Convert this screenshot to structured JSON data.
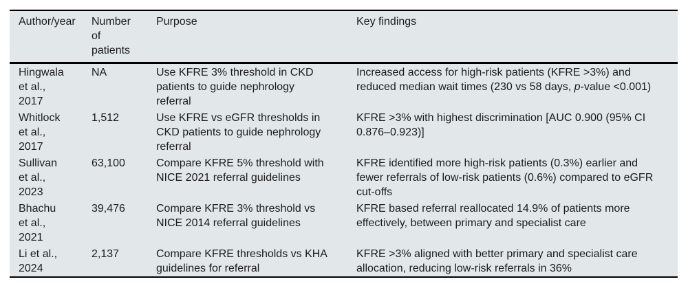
{
  "page": {
    "background_color": "#ffffff"
  },
  "table": {
    "background_color": "#e2e8ea",
    "rule_color": "#000000",
    "text_color": "#1b1b1b",
    "columns": [
      "Author/year",
      "Number\nof\npatients",
      "Purpose",
      "Key findings"
    ],
    "rows": [
      {
        "author": "Hingwala\net al.,\n2017",
        "patients": "NA",
        "purpose": "Use KFRE 3% threshold in CKD\npatients to guide nephrology\nreferral",
        "findings": [
          {
            "t": "Increased access for high-risk patients (KFRE >3%) and\nreduced median wait times (230 vs 58 days, "
          },
          {
            "t": "p",
            "i": true
          },
          {
            "t": "-value <0.001)"
          }
        ]
      },
      {
        "author": "Whitlock\net al.,\n2017",
        "patients": "1,512",
        "purpose": "Use KFRE vs eGFR thresholds in\nCKD patients to guide nephrology\nreferral",
        "findings": [
          {
            "t": "KFRE >3% with highest discrimination [AUC 0.900 (95% CI\n0.876–0.923)]"
          }
        ]
      },
      {
        "author": "Sullivan\net al.,\n2023",
        "patients": "63,100",
        "purpose": "Compare KFRE 5% threshold with\nNICE 2021 referral guidelines",
        "findings": [
          {
            "t": "KFRE identified more high-risk patients (0.3%) earlier and\nfewer referrals of low-risk patients (0.6%) compared to eGFR\ncut-offs"
          }
        ]
      },
      {
        "author": "Bhachu\net al.,\n2021",
        "patients": "39,476",
        "purpose": "Compare KFRE 3% threshold vs\nNICE 2014 referral guidelines",
        "findings": [
          {
            "t": "KFRE based referral reallocated 14.9% of patients more\neffectively, between primary and specialist care"
          }
        ]
      },
      {
        "author": "Li et al.,\n2024",
        "patients": "2,137",
        "purpose": "Compare KFRE thresholds vs KHA\nguidelines for referral",
        "findings": [
          {
            "t": "KFRE >3% aligned with better primary and specialist care\nallocation, reducing low-risk referrals in 36%"
          }
        ]
      }
    ]
  }
}
